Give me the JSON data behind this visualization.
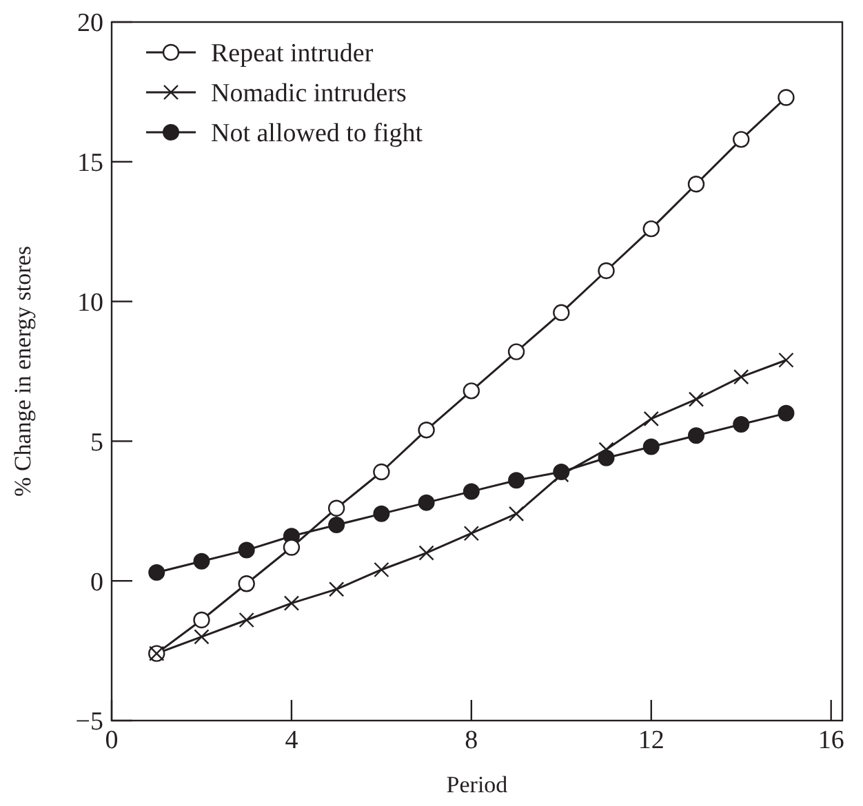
{
  "chart_data": {
    "type": "line",
    "xlabel": "Period",
    "ylabel": "% Change in energy stores",
    "xlim": [
      0,
      16.25
    ],
    "xticks": [
      0,
      4,
      8,
      12,
      16
    ],
    "ylim": [
      -5,
      20
    ],
    "yticks": [
      {
        "value": -5,
        "label": "−5"
      },
      0,
      5,
      10,
      15,
      20
    ],
    "grid": false,
    "legend": "top left",
    "line_style": "solid",
    "x": [
      1,
      2,
      3,
      4,
      5,
      6,
      7,
      8,
      9,
      10,
      11,
      12,
      13,
      14,
      15
    ],
    "series": [
      {
        "name": "Repeat intruder",
        "color": "#231f20",
        "marker": "open-circle",
        "values": [
          -2.6,
          -1.4,
          -0.1,
          1.2,
          2.6,
          3.9,
          5.4,
          6.8,
          8.2,
          9.6,
          11.1,
          12.6,
          14.2,
          15.8,
          17.3
        ]
      },
      {
        "name": "Nomadic intruders",
        "color": "#231f20",
        "marker": "cross",
        "values": [
          -2.6,
          -2.0,
          -1.4,
          -0.8,
          -0.3,
          0.4,
          1.0,
          1.7,
          2.4,
          3.8,
          4.7,
          5.8,
          6.5,
          7.3,
          7.9
        ]
      },
      {
        "name": "Not allowed to fight",
        "color": "#231f20",
        "marker": "circle",
        "values": [
          0.3,
          0.7,
          1.1,
          1.6,
          2.0,
          2.4,
          2.8,
          3.2,
          3.6,
          3.9,
          4.4,
          4.8,
          5.2,
          5.6,
          6.0
        ]
      }
    ]
  }
}
